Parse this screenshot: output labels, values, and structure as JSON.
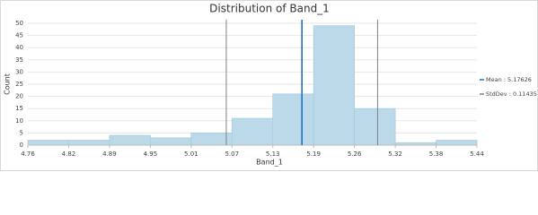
{
  "chart_data": {
    "type": "histogram",
    "title": "Distribution of Band_1",
    "x_label": "Band_1",
    "y_label": "Count",
    "bins": [
      4.762,
      4.8237,
      4.8854,
      4.9471,
      5.0088,
      5.0705,
      5.1322,
      5.1939,
      5.2556,
      5.3173,
      5.379,
      5.4407
    ],
    "values": [
      2,
      2,
      4,
      3,
      5,
      11,
      21,
      49,
      15,
      1,
      2
    ],
    "color": "#bcd9ea",
    "xlim": [
      4.762,
      5.4407
    ],
    "xticks": [
      {
        "value": 4.762,
        "label": "4.76"
      },
      {
        "value": 4.8237,
        "label": "4.82"
      },
      {
        "value": 4.8854,
        "label": "4.89"
      },
      {
        "value": 4.9471,
        "label": "4.95"
      },
      {
        "value": 5.0088,
        "label": "5.01"
      },
      {
        "value": 5.0705,
        "label": "5.07"
      },
      {
        "value": 5.1322,
        "label": "5.13"
      },
      {
        "value": 5.1939,
        "label": "5.19"
      },
      {
        "value": 5.2556,
        "label": "5.26"
      },
      {
        "value": 5.3173,
        "label": "5.32"
      },
      {
        "value": 5.379,
        "label": "5.38"
      },
      {
        "value": 5.4407,
        "label": "5.44"
      }
    ],
    "ylim": [
      0,
      50
    ],
    "yticks": [
      0,
      5,
      10,
      15,
      20,
      25,
      30,
      35,
      40,
      45,
      50
    ],
    "grid": true,
    "mean": {
      "value": 5.17626,
      "label": "Mean : 5.17626",
      "color": "#1f6fd1"
    },
    "stddev": {
      "value": 0.11435,
      "label": "StdDev : 0.11435",
      "color": "#808080"
    }
  }
}
